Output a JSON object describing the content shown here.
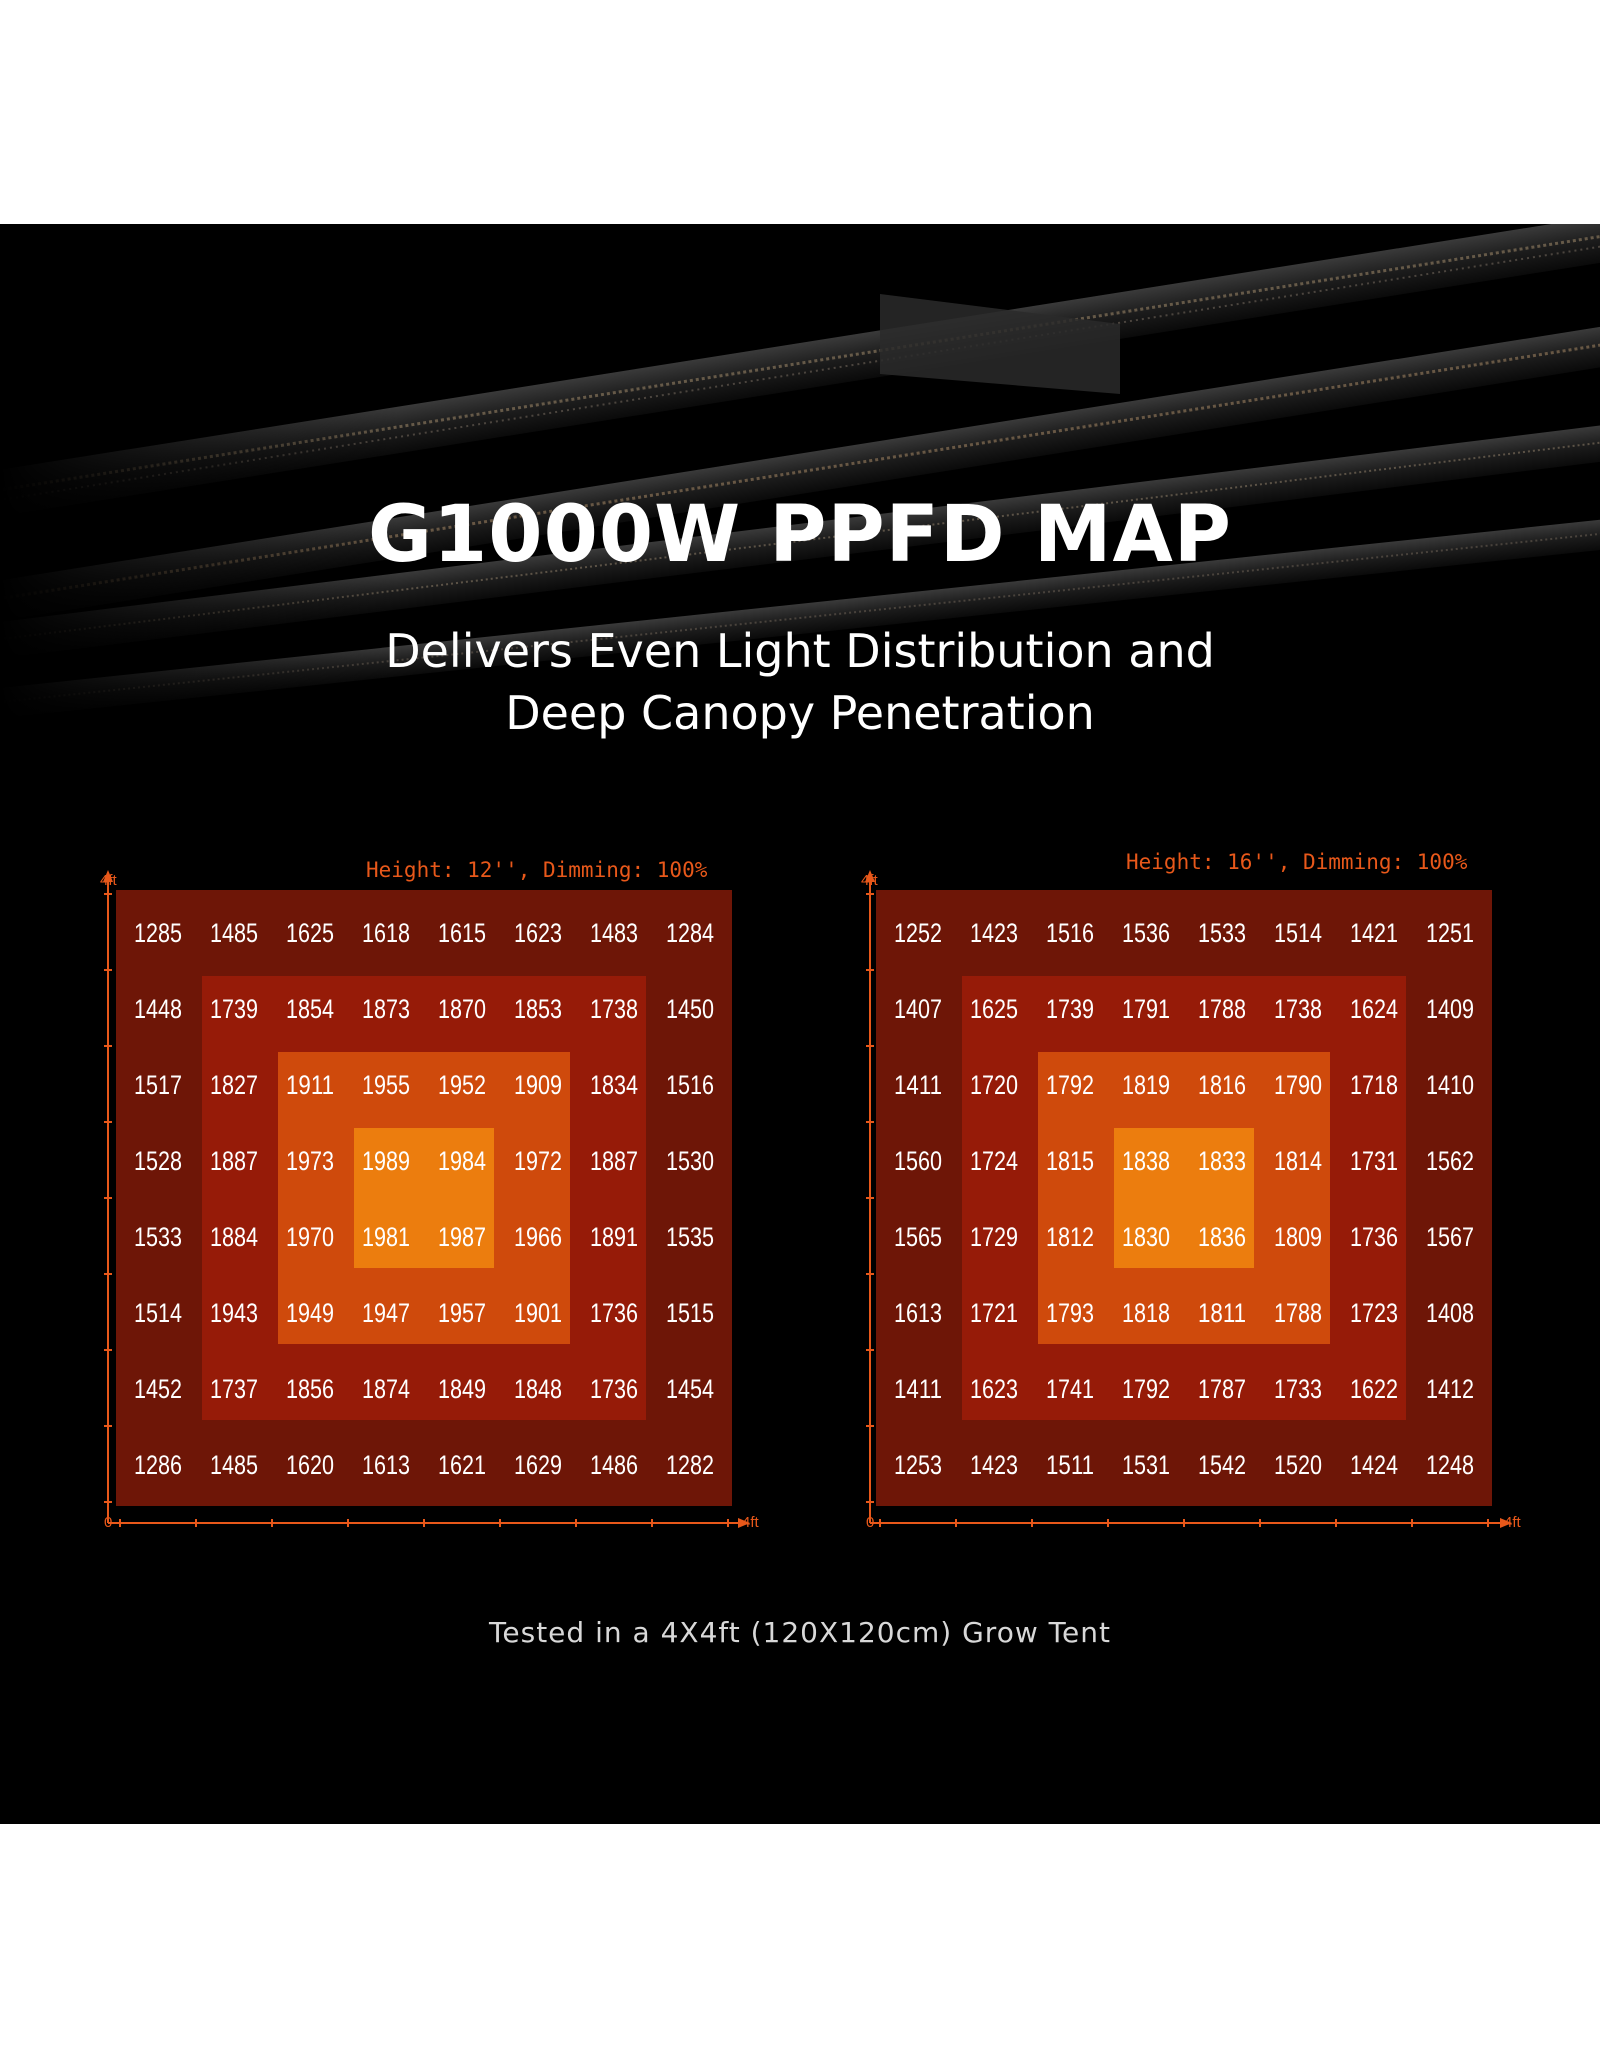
{
  "title": "G1000W PPFD MAP",
  "subtitle_line1": "Delivers Even Light Distribution and",
  "subtitle_line2": "Deep Canopy Penetration",
  "footnote": "Tested in a 4X4ft (120X120cm) Grow Tent",
  "colors": {
    "background": "#000000",
    "accent": "#e8581a",
    "ring0": "#6e1607",
    "ring1": "#961b08",
    "ring2": "#cf4a0c",
    "ring3": "#ec7d0e"
  },
  "chart_data": [
    {
      "type": "heatmap",
      "title": "Height: 12'', Dimming: 100%",
      "x_axis": {
        "min_label": "0",
        "max_label": "4ft"
      },
      "y_axis": {
        "max_label": "4ft"
      },
      "rows": [
        [
          1285,
          1485,
          1625,
          1618,
          1615,
          1623,
          1483,
          1284
        ],
        [
          1448,
          1739,
          1854,
          1873,
          1870,
          1853,
          1738,
          1450
        ],
        [
          1517,
          1827,
          1911,
          1955,
          1952,
          1909,
          1834,
          1516
        ],
        [
          1528,
          1887,
          1973,
          1989,
          1984,
          1972,
          1887,
          1530
        ],
        [
          1533,
          1884,
          1970,
          1981,
          1987,
          1966,
          1891,
          1535
        ],
        [
          1514,
          1943,
          1949,
          1947,
          1957,
          1901,
          1736,
          1515
        ],
        [
          1452,
          1737,
          1856,
          1874,
          1849,
          1848,
          1736,
          1454
        ],
        [
          1286,
          1485,
          1620,
          1613,
          1621,
          1629,
          1486,
          1282
        ]
      ]
    },
    {
      "type": "heatmap",
      "title": "Height: 16'', Dimming: 100%",
      "x_axis": {
        "min_label": "0",
        "max_label": "4ft"
      },
      "y_axis": {
        "max_label": "4ft"
      },
      "rows": [
        [
          1252,
          1423,
          1516,
          1536,
          1533,
          1514,
          1421,
          1251
        ],
        [
          1407,
          1625,
          1739,
          1791,
          1788,
          1738,
          1624,
          1409
        ],
        [
          1411,
          1720,
          1792,
          1819,
          1816,
          1790,
          1718,
          1410
        ],
        [
          1560,
          1724,
          1815,
          1838,
          1833,
          1814,
          1731,
          1562
        ],
        [
          1565,
          1729,
          1812,
          1830,
          1836,
          1809,
          1736,
          1567
        ],
        [
          1613,
          1721,
          1793,
          1818,
          1811,
          1788,
          1723,
          1408
        ],
        [
          1411,
          1623,
          1741,
          1792,
          1787,
          1733,
          1622,
          1412
        ],
        [
          1253,
          1423,
          1511,
          1531,
          1542,
          1520,
          1424,
          1248
        ]
      ]
    }
  ]
}
